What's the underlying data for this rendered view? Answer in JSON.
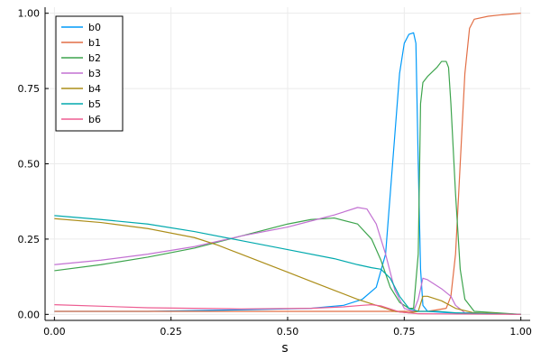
{
  "chart_data": {
    "type": "line",
    "title": "",
    "xlabel": "s",
    "ylabel": "",
    "xlim": [
      -0.02,
      1.02
    ],
    "ylim": [
      -0.02,
      1.02
    ],
    "xticks": [
      0.0,
      0.25,
      0.5,
      0.75,
      1.0
    ],
    "xtick_labels": [
      "0.00",
      "0.25",
      "0.50",
      "0.75",
      "1.00"
    ],
    "yticks": [
      0.0,
      0.25,
      0.5,
      0.75,
      1.0
    ],
    "ytick_labels": [
      "0.00",
      "0.25",
      "0.50",
      "0.75",
      "1.00"
    ],
    "grid": true,
    "legend_position": "top-left",
    "series": [
      {
        "name": "b0",
        "color": "#009af9",
        "points": [
          [
            0,
            0.01
          ],
          [
            0.2,
            0.01
          ],
          [
            0.4,
            0.015
          ],
          [
            0.55,
            0.02
          ],
          [
            0.62,
            0.03
          ],
          [
            0.66,
            0.05
          ],
          [
            0.69,
            0.09
          ],
          [
            0.71,
            0.2
          ],
          [
            0.72,
            0.4
          ],
          [
            0.73,
            0.6
          ],
          [
            0.74,
            0.8
          ],
          [
            0.75,
            0.9
          ],
          [
            0.76,
            0.93
          ],
          [
            0.77,
            0.935
          ],
          [
            0.775,
            0.9
          ],
          [
            0.78,
            0.5
          ],
          [
            0.785,
            0.15
          ],
          [
            0.79,
            0.03
          ],
          [
            0.8,
            0.01
          ],
          [
            0.85,
            0.005
          ],
          [
            1.0,
            0.0
          ]
        ]
      },
      {
        "name": "b1",
        "color": "#e26f46",
        "points": [
          [
            0,
            0.01
          ],
          [
            0.5,
            0.01
          ],
          [
            0.7,
            0.01
          ],
          [
            0.8,
            0.01
          ],
          [
            0.84,
            0.02
          ],
          [
            0.85,
            0.06
          ],
          [
            0.86,
            0.2
          ],
          [
            0.87,
            0.5
          ],
          [
            0.88,
            0.8
          ],
          [
            0.89,
            0.95
          ],
          [
            0.9,
            0.98
          ],
          [
            0.93,
            0.99
          ],
          [
            0.96,
            0.995
          ],
          [
            1.0,
            1.0
          ]
        ]
      },
      {
        "name": "b2",
        "color": "#3da44d",
        "points": [
          [
            0,
            0.145
          ],
          [
            0.1,
            0.165
          ],
          [
            0.2,
            0.19
          ],
          [
            0.3,
            0.22
          ],
          [
            0.4,
            0.26
          ],
          [
            0.5,
            0.3
          ],
          [
            0.55,
            0.315
          ],
          [
            0.6,
            0.32
          ],
          [
            0.65,
            0.3
          ],
          [
            0.68,
            0.25
          ],
          [
            0.7,
            0.18
          ],
          [
            0.72,
            0.09
          ],
          [
            0.74,
            0.04
          ],
          [
            0.76,
            0.02
          ],
          [
            0.77,
            0.02
          ],
          [
            0.78,
            0.2
          ],
          [
            0.785,
            0.7
          ],
          [
            0.79,
            0.77
          ],
          [
            0.8,
            0.79
          ],
          [
            0.82,
            0.82
          ],
          [
            0.83,
            0.84
          ],
          [
            0.84,
            0.84
          ],
          [
            0.845,
            0.82
          ],
          [
            0.85,
            0.7
          ],
          [
            0.86,
            0.4
          ],
          [
            0.87,
            0.15
          ],
          [
            0.88,
            0.05
          ],
          [
            0.9,
            0.01
          ],
          [
            1.0,
            0.0
          ]
        ]
      },
      {
        "name": "b3",
        "color": "#c271d2",
        "points": [
          [
            0,
            0.165
          ],
          [
            0.1,
            0.18
          ],
          [
            0.2,
            0.2
          ],
          [
            0.3,
            0.225
          ],
          [
            0.4,
            0.26
          ],
          [
            0.5,
            0.29
          ],
          [
            0.55,
            0.31
          ],
          [
            0.6,
            0.33
          ],
          [
            0.65,
            0.355
          ],
          [
            0.67,
            0.35
          ],
          [
            0.69,
            0.3
          ],
          [
            0.71,
            0.2
          ],
          [
            0.73,
            0.08
          ],
          [
            0.75,
            0.02
          ],
          [
            0.77,
            0.01
          ],
          [
            0.78,
            0.05
          ],
          [
            0.79,
            0.12
          ],
          [
            0.8,
            0.115
          ],
          [
            0.83,
            0.085
          ],
          [
            0.85,
            0.06
          ],
          [
            0.86,
            0.03
          ],
          [
            0.88,
            0.005
          ],
          [
            1.0,
            0.0
          ]
        ]
      },
      {
        "name": "b4",
        "color": "#ac8d18",
        "points": [
          [
            0,
            0.318
          ],
          [
            0.1,
            0.305
          ],
          [
            0.2,
            0.285
          ],
          [
            0.3,
            0.255
          ],
          [
            0.35,
            0.23
          ],
          [
            0.4,
            0.2
          ],
          [
            0.45,
            0.17
          ],
          [
            0.5,
            0.14
          ],
          [
            0.55,
            0.11
          ],
          [
            0.6,
            0.08
          ],
          [
            0.65,
            0.05
          ],
          [
            0.7,
            0.025
          ],
          [
            0.73,
            0.01
          ],
          [
            0.76,
            0.005
          ],
          [
            0.78,
            0.01
          ],
          [
            0.79,
            0.06
          ],
          [
            0.8,
            0.06
          ],
          [
            0.83,
            0.045
          ],
          [
            0.86,
            0.02
          ],
          [
            0.9,
            0.005
          ],
          [
            1.0,
            0.0
          ]
        ]
      },
      {
        "name": "b5",
        "color": "#00a9ad",
        "points": [
          [
            0,
            0.328
          ],
          [
            0.1,
            0.315
          ],
          [
            0.2,
            0.3
          ],
          [
            0.3,
            0.275
          ],
          [
            0.4,
            0.245
          ],
          [
            0.5,
            0.215
          ],
          [
            0.6,
            0.185
          ],
          [
            0.65,
            0.165
          ],
          [
            0.68,
            0.155
          ],
          [
            0.7,
            0.15
          ],
          [
            0.72,
            0.12
          ],
          [
            0.74,
            0.06
          ],
          [
            0.76,
            0.02
          ],
          [
            0.78,
            0.01
          ],
          [
            0.82,
            0.01
          ],
          [
            0.86,
            0.005
          ],
          [
            1.0,
            0.0
          ]
        ]
      },
      {
        "name": "b6",
        "color": "#ed5d92",
        "points": [
          [
            0,
            0.032
          ],
          [
            0.2,
            0.022
          ],
          [
            0.4,
            0.018
          ],
          [
            0.55,
            0.02
          ],
          [
            0.62,
            0.025
          ],
          [
            0.66,
            0.03
          ],
          [
            0.68,
            0.032
          ],
          [
            0.7,
            0.028
          ],
          [
            0.72,
            0.018
          ],
          [
            0.74,
            0.008
          ],
          [
            0.78,
            0.002
          ],
          [
            1.0,
            0.0
          ]
        ]
      }
    ]
  }
}
